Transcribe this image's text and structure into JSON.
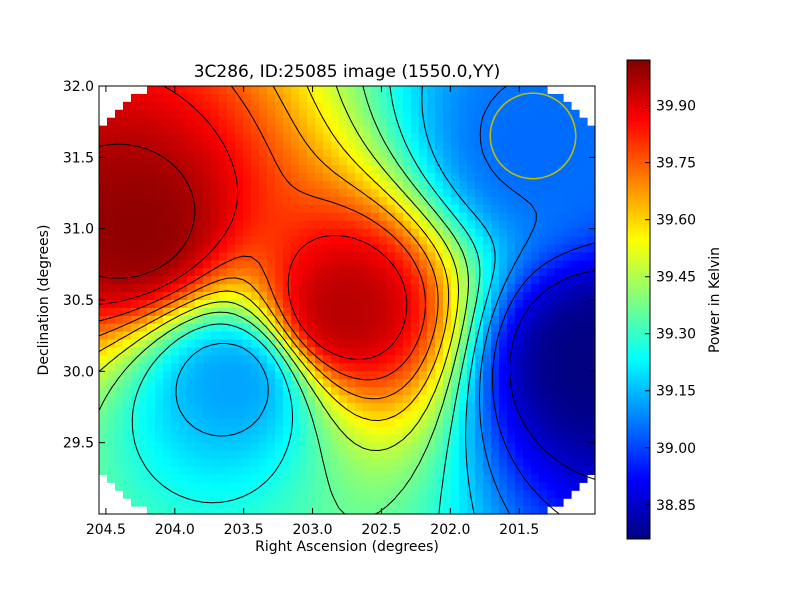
{
  "chart_data": {
    "type": "heatmap",
    "title": "3C286, ID:25085 image (1550.0,YY)",
    "xlabel": "Right Ascension (degrees)",
    "ylabel": "Declination (degrees)",
    "colorbar_label": "Power in Kelvin",
    "xlim": [
      204.55,
      200.95
    ],
    "ylim": [
      29.0,
      32.0
    ],
    "x_ticks": [
      {
        "value": 204.5,
        "label": "204.5"
      },
      {
        "value": 204.0,
        "label": "204.0"
      },
      {
        "value": 203.5,
        "label": "203.5"
      },
      {
        "value": 203.0,
        "label": "203.0"
      },
      {
        "value": 202.5,
        "label": "202.5"
      },
      {
        "value": 202.0,
        "label": "202.0"
      },
      {
        "value": 201.5,
        "label": "201.5"
      }
    ],
    "y_ticks": [
      {
        "value": 29.5,
        "label": "29.5"
      },
      {
        "value": 30.0,
        "label": "30.0"
      },
      {
        "value": 30.5,
        "label": "30.5"
      },
      {
        "value": 31.0,
        "label": "31.0"
      },
      {
        "value": 31.5,
        "label": "31.5"
      },
      {
        "value": 32.0,
        "label": "32.0"
      }
    ],
    "colorbar_range": [
      38.76,
      40.02
    ],
    "colorbar_ticks": [
      {
        "value": 38.85,
        "label": "38.85"
      },
      {
        "value": 39.0,
        "label": "39.00"
      },
      {
        "value": 39.15,
        "label": "39.15"
      },
      {
        "value": 39.3,
        "label": "39.30"
      },
      {
        "value": 39.45,
        "label": "39.45"
      },
      {
        "value": 39.6,
        "label": "39.60"
      },
      {
        "value": 39.75,
        "label": "39.75"
      },
      {
        "value": 39.9,
        "label": "39.90"
      }
    ],
    "colormap": "jet",
    "features": [
      {
        "ra": 204.3,
        "dec": 31.0,
        "value": 40.0
      },
      {
        "ra": 202.8,
        "dec": 30.45,
        "value": 39.95
      },
      {
        "ra": 203.6,
        "dec": 29.95,
        "value": 39.12
      },
      {
        "ra": 201.0,
        "dec": 30.1,
        "value": 38.76
      },
      {
        "ra": 201.4,
        "dec": 31.6,
        "value": 39.05
      }
    ],
    "circle_marker": {
      "ra": 201.4,
      "dec": 31.65,
      "radius_deg": 0.3,
      "color": "#bfbf00"
    },
    "contour_color": "#000000"
  }
}
